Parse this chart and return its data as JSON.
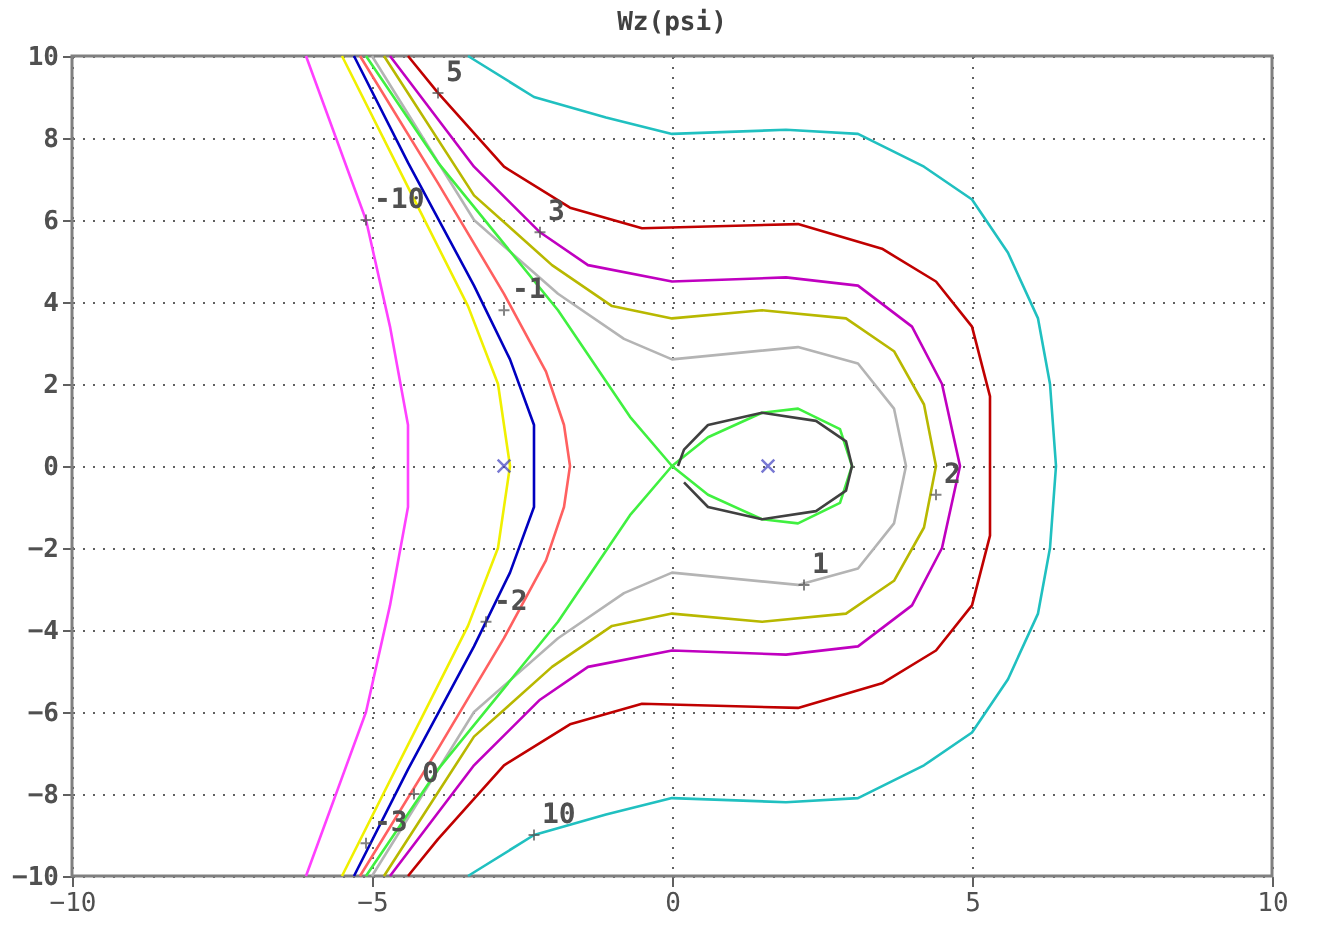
{
  "chart_data": {
    "type": "line",
    "title": "Wz(psi)",
    "xlim": [
      -10,
      10
    ],
    "ylim": [
      -10,
      10
    ],
    "xticks": [
      -10,
      -5,
      0,
      5,
      10
    ],
    "yticks": [
      -10,
      -8,
      -6,
      -4,
      -2,
      0,
      2,
      4,
      6,
      8,
      10
    ],
    "grid": true,
    "legend": false,
    "line_style": "solid",
    "series": [
      {
        "color": "#20c0c0",
        "x": [
          -3.4,
          -2.3,
          -1.1,
          0,
          1.9,
          3.1,
          4.2,
          5.0,
          5.6,
          6.1,
          6.3,
          6.4,
          6.3,
          6.1,
          5.6,
          5.0,
          4.2,
          3.1,
          1.9,
          0,
          -1.1,
          -2.3,
          -3.4
        ],
        "values": [
          10,
          9.0,
          8.5,
          8.1,
          8.2,
          8.1,
          7.3,
          6.5,
          5.2,
          3.6,
          2.0,
          0,
          -2.0,
          -3.6,
          -5.2,
          -6.5,
          -7.3,
          -8.1,
          -8.2,
          -8.1,
          -8.5,
          -9.0,
          -10
        ]
      },
      {
        "color": "#c00000",
        "x": [
          -4.4,
          -3.9,
          -2.8,
          -1.7,
          -0.5,
          2.1,
          3.5,
          4.4,
          5.0,
          5.3,
          5.3,
          5.3,
          5.0,
          4.4,
          3.5,
          2.1,
          -0.5,
          -1.7,
          -2.8,
          -3.9,
          -4.4
        ],
        "values": [
          10,
          9.1,
          7.3,
          6.3,
          5.8,
          5.9,
          5.3,
          4.5,
          3.4,
          1.7,
          0,
          -1.7,
          -3.4,
          -4.5,
          -5.3,
          -5.9,
          -5.8,
          -6.3,
          -7.3,
          -9.1,
          -10
        ]
      },
      {
        "color": "#c000c0",
        "x": [
          -4.7,
          -3.3,
          -2.2,
          -1.4,
          0,
          1.9,
          3.1,
          4.0,
          4.5,
          4.8,
          4.5,
          4.0,
          3.1,
          1.9,
          0,
          -1.4,
          -2.2,
          -3.3,
          -4.7
        ],
        "values": [
          10,
          7.3,
          5.7,
          4.9,
          4.5,
          4.6,
          4.4,
          3.4,
          2.0,
          0,
          -2.0,
          -3.4,
          -4.4,
          -4.6,
          -4.5,
          -4.9,
          -5.7,
          -7.3,
          -10
        ]
      },
      {
        "color": "#b8b800",
        "x": [
          -4.8,
          -3.3,
          -2.0,
          -1.0,
          0,
          1.5,
          2.9,
          3.7,
          4.2,
          4.4,
          4.2,
          3.7,
          2.9,
          1.5,
          0,
          -1.0,
          -2.0,
          -3.3,
          -4.8
        ],
        "values": [
          10,
          6.6,
          4.9,
          3.9,
          3.6,
          3.8,
          3.6,
          2.8,
          1.5,
          0,
          -1.5,
          -2.8,
          -3.6,
          -3.8,
          -3.6,
          -3.9,
          -4.9,
          -6.6,
          -10
        ]
      },
      {
        "color": "#b4b4b4",
        "x": [
          -5.0,
          -3.3,
          -1.9,
          -0.8,
          0,
          2.1,
          3.1,
          3.7,
          3.9,
          3.7,
          3.1,
          2.1,
          0,
          -0.8,
          -1.9,
          -3.3,
          -5.0
        ],
        "values": [
          10,
          6.0,
          4.2,
          3.1,
          2.6,
          2.9,
          2.5,
          1.4,
          0,
          -1.4,
          -2.5,
          -2.9,
          -2.6,
          -3.1,
          -4.2,
          -6.0,
          -10
        ]
      },
      {
        "color": "#40f040",
        "x": [
          -5.1,
          -3.9,
          -1.9,
          -0.7,
          0,
          0.6,
          1.5,
          2.1,
          2.8,
          3.0,
          2.8,
          2.1,
          1.5,
          0.6,
          0,
          -0.7,
          -1.9,
          -3.9,
          -5.1
        ],
        "values": [
          10,
          7.4,
          3.8,
          1.2,
          0,
          0.7,
          1.3,
          1.4,
          0.9,
          0,
          -0.9,
          -1.4,
          -1.3,
          -0.7,
          0,
          -1.2,
          -3.8,
          -7.4,
          -10
        ]
      },
      {
        "color": "#404040",
        "x": [
          0.1,
          0.2,
          0.6,
          1.5,
          2.4,
          2.9,
          3.0,
          2.9,
          2.4,
          1.5,
          0.6,
          0.2
        ],
        "values": [
          0,
          0.4,
          1.0,
          1.3,
          1.1,
          0.6,
          0,
          -0.6,
          -1.1,
          -1.3,
          -1.0,
          -0.4
        ]
      },
      {
        "color": "#ff6060",
        "x": [
          -5.2,
          -3.9,
          -2.8,
          -2.1,
          -1.8,
          -1.7,
          -1.8,
          -2.1,
          -2.8,
          -3.9,
          -5.2
        ],
        "values": [
          10,
          6.9,
          4.2,
          2.3,
          1.0,
          0,
          -1.0,
          -2.3,
          -4.2,
          -6.9,
          -10
        ]
      },
      {
        "color": "#0000c0",
        "x": [
          -5.3,
          -4.4,
          -3.3,
          -2.7,
          -2.3,
          -2.3,
          -2.3,
          -2.7,
          -3.3,
          -4.4,
          -5.3
        ],
        "values": [
          10,
          7.4,
          4.4,
          2.6,
          1.0,
          0,
          -1.0,
          -2.6,
          -4.4,
          -7.4,
          -10
        ]
      },
      {
        "color": "#f0f000",
        "x": [
          -5.5,
          -4.4,
          -3.4,
          -2.9,
          -2.7,
          -2.9,
          -3.4,
          -4.4,
          -5.5
        ],
        "values": [
          10,
          6.8,
          3.9,
          2.0,
          0,
          -2.0,
          -3.9,
          -6.8,
          -10
        ]
      },
      {
        "color": "#ff40ff",
        "x": [
          -6.1,
          -5.1,
          -4.7,
          -4.4,
          -4.4,
          -4.4,
          -4.7,
          -5.1,
          -6.1
        ],
        "values": [
          10,
          6.0,
          3.4,
          1.0,
          0,
          -1.0,
          -3.4,
          -6.0,
          -10
        ]
      },
      {
        "type": "scatter",
        "marker": "cross",
        "color": "#4040c0",
        "x": [
          -2.8,
          1.6
        ],
        "values": [
          0,
          0
        ]
      }
    ],
    "annotations": [
      {
        "text": "5",
        "x": -3.9,
        "y": 9.1
      },
      {
        "text": "-10",
        "x": -5.1,
        "y": 6.0
      },
      {
        "text": "3",
        "x": -2.2,
        "y": 5.7
      },
      {
        "text": "-1",
        "x": -2.8,
        "y": 3.8
      },
      {
        "text": "2",
        "x": 4.4,
        "y": -0.7
      },
      {
        "text": "1",
        "x": 2.2,
        "y": -2.9
      },
      {
        "text": "-2",
        "x": -3.1,
        "y": -3.8
      },
      {
        "text": "0",
        "x": -4.3,
        "y": -8.0
      },
      {
        "text": "-3",
        "x": -5.1,
        "y": -9.2
      },
      {
        "text": "10",
        "x": -2.3,
        "y": -9.0
      }
    ]
  }
}
